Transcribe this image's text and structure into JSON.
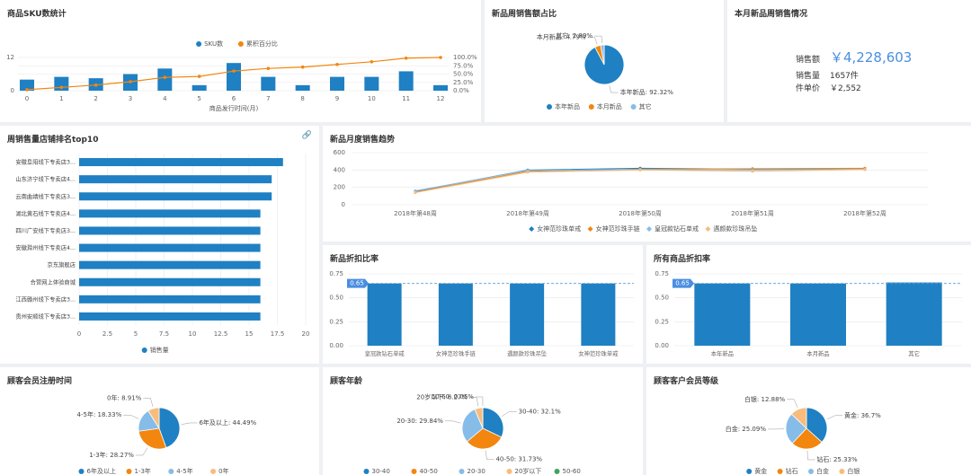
{
  "panels": {
    "sku": {
      "title": "商品SKU数统计"
    },
    "share": {
      "title": "新品周销售额占比"
    },
    "summary": {
      "title": "本月新品周销售情况",
      "sales_label": "销售额",
      "sales_value": "￥4,228,603",
      "qty_label": "销售量",
      "qty_value": "1657件",
      "price_label": "件单价",
      "price_value": "￥2,552"
    },
    "ranking": {
      "title": "周销售量店铺排名top10"
    },
    "trend": {
      "title": "新品月度销售趋势"
    },
    "discount_new": {
      "title": "新品折扣比率"
    },
    "discount_all": {
      "title": "所有商品折扣率"
    },
    "reg": {
      "title": "顾客会员注册时间"
    },
    "age": {
      "title": "顾客年龄"
    },
    "level": {
      "title": "顾客客户会员等级"
    }
  },
  "colors": {
    "blue": "#1f80c3",
    "orange": "#f2860f",
    "light_blue": "#86bce8",
    "peach": "#f8bc7d",
    "green": "#3fa55a",
    "grid": "#e8e8e8",
    "axis_text": "#666666"
  },
  "icons": {
    "link": "link-icon"
  },
  "chart_data": [
    {
      "id": "sku",
      "type": "bar",
      "categories": [
        "0",
        "1",
        "2",
        "3",
        "4",
        "5",
        "6",
        "7",
        "8",
        "9",
        "10",
        "11",
        "12"
      ],
      "series": [
        {
          "name": "SKU数",
          "type": "bar",
          "values": [
            4,
            5,
            4.5,
            6,
            8,
            2,
            10,
            5,
            2,
            5,
            5,
            7,
            2
          ]
        },
        {
          "name": "累积百分比",
          "type": "line",
          "axis": "right",
          "values": [
            3,
            10,
            17,
            27,
            40,
            43,
            59,
            67,
            71,
            79,
            87,
            98,
            100
          ]
        }
      ],
      "xlabel": "商品发行时间(月)",
      "left_ticks": [
        "0",
        "12"
      ],
      "ylim": [
        0,
        12
      ],
      "right_ticks": [
        "0.0%",
        "25.0%",
        "50.0%",
        "75.0%",
        "100.0%"
      ],
      "y2lim": [
        0,
        100
      ],
      "legend": "top"
    },
    {
      "id": "share",
      "type": "pie",
      "slices": [
        {
          "name": "本年新品",
          "value": 92.32,
          "label": "本年新品: 92.32%"
        },
        {
          "name": "本月新品",
          "value": 4.79,
          "label": "本月新品: 4.79%"
        },
        {
          "name": "其它",
          "value": 2.89,
          "label": "其它: 2.89%"
        }
      ],
      "legend": "bottom"
    },
    {
      "id": "ranking",
      "type": "bar",
      "orientation": "horizontal",
      "categories": [
        "安徽阜阳线下专卖店3...",
        "山东济宁线下专卖店4...",
        "云南曲靖线下专卖店3...",
        "湖北黄石线下专卖店4...",
        "四川广安线下专卖店3...",
        "安徽滁州线下专卖店4...",
        "京东旗舰店",
        "合营网上体验商城",
        "江西赣州线下专卖店3...",
        "贵州安顺线下专卖店3..."
      ],
      "series": [
        {
          "name": "销售量",
          "values": [
            18,
            17,
            17,
            16,
            16,
            16,
            16,
            16,
            16,
            16
          ]
        }
      ],
      "xticks": [
        "0",
        "2.5",
        "5",
        "7.5",
        "10",
        "12.5",
        "15",
        "17.5",
        "20"
      ],
      "xlim": [
        0,
        20
      ],
      "legend": "bottom"
    },
    {
      "id": "trend",
      "type": "line",
      "x": [
        "2018年第48周",
        "2018年第49周",
        "2018年第50周",
        "2018年第51周",
        "2018年第52周"
      ],
      "series": [
        {
          "name": "女神范珍珠单戒",
          "values": [
            155,
            400,
            420,
            410,
            415
          ]
        },
        {
          "name": "女神范珍珠手链",
          "values": [
            145,
            385,
            410,
            415,
            420
          ]
        },
        {
          "name": "皇冠款钻石单戒",
          "values": [
            160,
            395,
            405,
            400,
            410
          ]
        },
        {
          "name": "遇颜款珍珠吊坠",
          "values": [
            140,
            375,
            400,
            385,
            405
          ]
        }
      ],
      "yticks": [
        "0",
        "200",
        "400",
        "600"
      ],
      "ylim": [
        0,
        600
      ],
      "legend": "bottom"
    },
    {
      "id": "discount_new",
      "type": "bar",
      "categories": [
        "皇冠款钻石单戒",
        "女神范珍珠手链",
        "遇颜款珍珠吊坠",
        "女神范珍珠单戒"
      ],
      "series": [
        {
          "values": [
            0.65,
            0.65,
            0.65,
            0.65
          ]
        }
      ],
      "yticks": [
        "0.00",
        "0.25",
        "0.50",
        "0.75"
      ],
      "ylim": [
        0,
        0.75
      ],
      "reference_line": {
        "value": 0.65,
        "label": "0.65"
      }
    },
    {
      "id": "discount_all",
      "type": "bar",
      "categories": [
        "本年新品",
        "本月新品",
        "其它"
      ],
      "series": [
        {
          "values": [
            0.65,
            0.65,
            0.66
          ]
        }
      ],
      "yticks": [
        "0.00",
        "0.25",
        "0.50",
        "0.75"
      ],
      "ylim": [
        0,
        0.75
      ],
      "reference_line": {
        "value": 0.65,
        "label": "0.65"
      }
    },
    {
      "id": "reg",
      "type": "pie",
      "slices": [
        {
          "name": "6年及以上",
          "value": 44.49,
          "label": "6年及以上: 44.49%"
        },
        {
          "name": "1-3年",
          "value": 28.27,
          "label": "1-3年: 28.27%"
        },
        {
          "name": "4-5年",
          "value": 18.33,
          "label": "4-5年: 18.33%"
        },
        {
          "name": "0年",
          "value": 8.91,
          "label": "0年: 8.91%"
        }
      ],
      "legend": "bottom"
    },
    {
      "id": "age",
      "type": "pie",
      "slices": [
        {
          "name": "30-40",
          "value": 32.1,
          "label": "30-40: 32.1%"
        },
        {
          "name": "40-50",
          "value": 31.73,
          "label": "40-50: 31.73%"
        },
        {
          "name": "20-30",
          "value": 29.84,
          "label": "20-30: 29.84%"
        },
        {
          "name": "20岁以下",
          "value": 6.27,
          "label": "20岁以下: 6.27%"
        },
        {
          "name": "50-60",
          "value": 0.05,
          "label": "50-60: 0.05%"
        }
      ],
      "legend": "bottom"
    },
    {
      "id": "level",
      "type": "pie",
      "slices": [
        {
          "name": "黄金",
          "value": 36.7,
          "label": "黄金: 36.7%"
        },
        {
          "name": "钻石",
          "value": 25.33,
          "label": "钻石: 25.33%"
        },
        {
          "name": "白金",
          "value": 25.09,
          "label": "白金: 25.09%"
        },
        {
          "name": "白银",
          "value": 12.88,
          "label": "白银: 12.88%"
        }
      ],
      "legend": "bottom"
    }
  ]
}
